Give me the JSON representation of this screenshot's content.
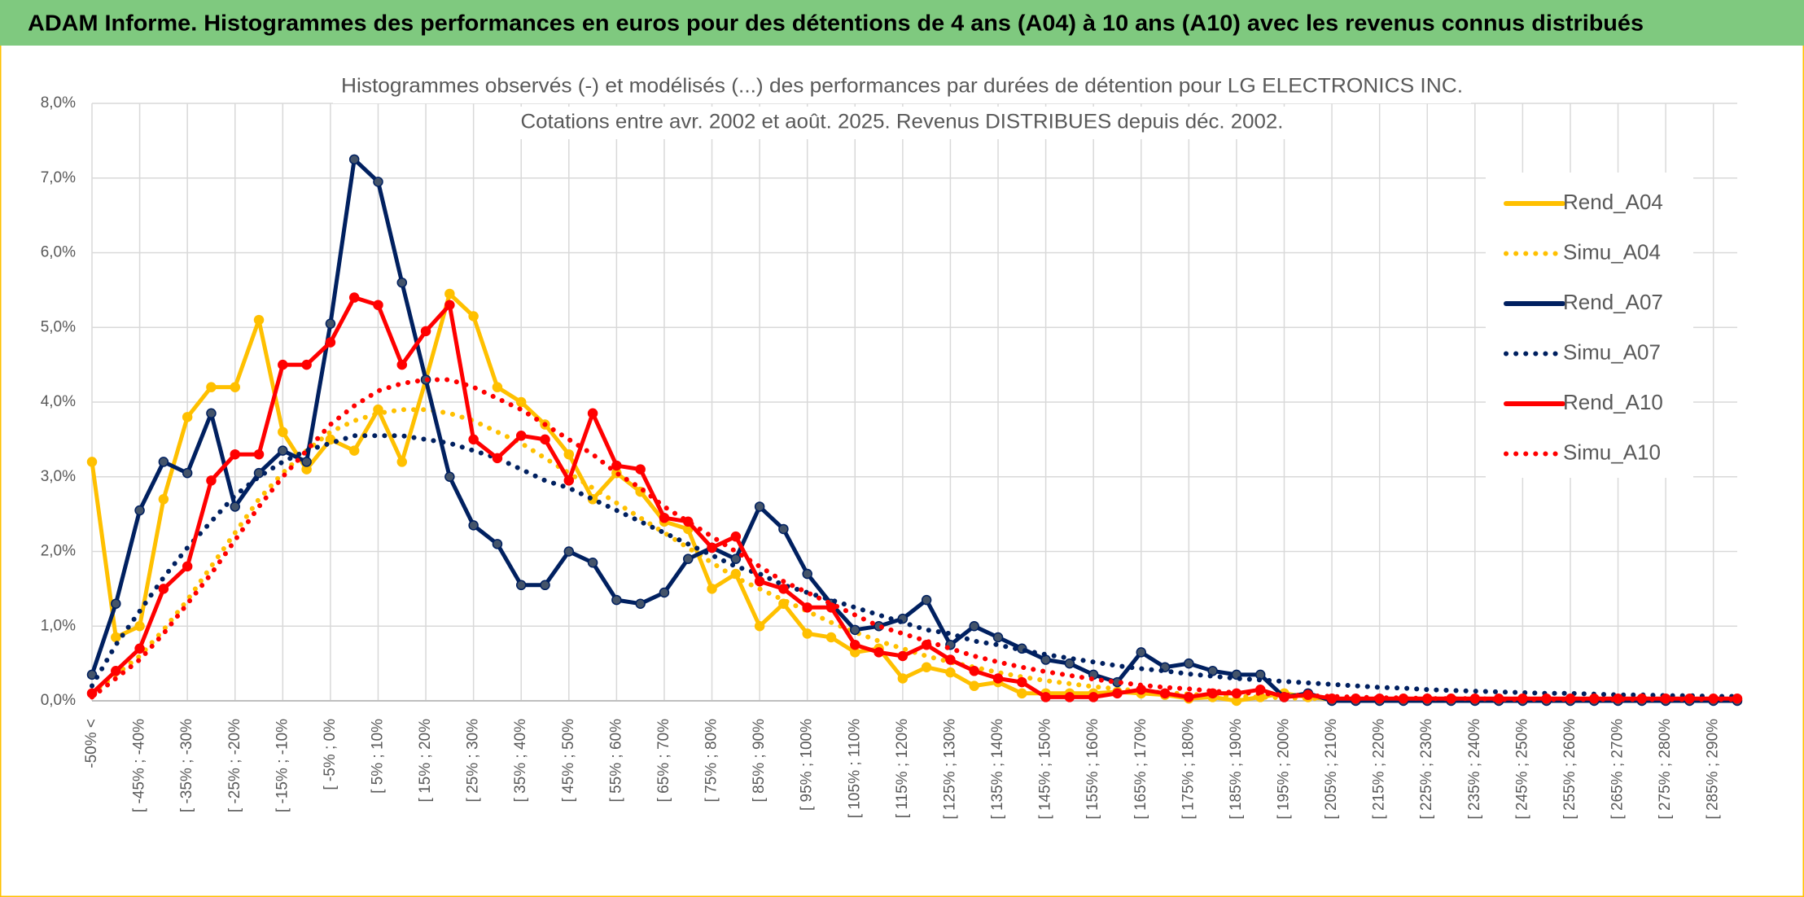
{
  "chart_data": {
    "type": "line",
    "title": "ADAM Informe. Histogrammes des performances en euros pour des détentions de 4 ans (A04) à 10 ans (A10) avec les revenus connus distribués",
    "subtitle": [
      "Histogrammes observés (-) et modélisés (...) des performances par durées de détention pour LG ELECTRONICS INC.",
      "Cotations entre avr. 2002 et août. 2025. Revenus DISTRIBUES depuis déc. 2002."
    ],
    "categories": [
      "-50% <",
      null,
      "[ -45% ; -40%",
      null,
      "[ -35% ; -30%",
      null,
      "[ -25% ; -20%",
      null,
      "[ -15% ; -10%",
      null,
      "[ -5% ; 0%",
      null,
      "[ 5% ; 10%",
      null,
      "[ 15% ; 20%",
      null,
      "[ 25% ; 30%",
      null,
      "[ 35% ; 40%",
      null,
      "[ 45% ; 50%",
      null,
      "[ 55% ; 60%",
      null,
      "[ 65% ; 70%",
      null,
      "[ 75% ; 80%",
      null,
      "[ 85% ; 90%",
      null,
      "[ 95% ; 100%",
      null,
      "[ 105% ; 110%",
      null,
      "[ 115% ; 120%",
      null,
      "[ 125% ; 130%",
      null,
      "[ 135% ; 140%",
      null,
      "[ 145% ; 150%",
      null,
      "[ 155% ; 160%",
      null,
      "[ 165% ; 170%",
      null,
      "[ 175% ; 180%",
      null,
      "[ 185% ; 190%",
      null,
      "[ 195% ; 200%",
      null,
      "[ 205% ; 210%",
      null,
      "[ 215% ; 220%",
      null,
      "[ 225% ; 230%",
      null,
      "[ 235% ; 240%",
      null,
      "[ 245% ; 250%",
      null,
      "[ 255% ; 260%",
      null,
      "[ 265% ; 270%",
      null,
      "[ 275% ; 280%",
      null,
      "[ 285% ; 290%",
      null
    ],
    "ylim": [
      0,
      8
    ],
    "yticks": [
      {
        "value": 0,
        "label": "0,0%"
      },
      {
        "value": 1,
        "label": "1,0%"
      },
      {
        "value": 2,
        "label": "2,0%"
      },
      {
        "value": 3,
        "label": "3,0%"
      },
      {
        "value": 4,
        "label": "4,0%"
      },
      {
        "value": 5,
        "label": "5,0%"
      },
      {
        "value": 6,
        "label": "6,0%"
      },
      {
        "value": 7,
        "label": "7,0%"
      },
      {
        "value": 8,
        "label": "8,0%"
      }
    ],
    "grid": true,
    "legend": "right",
    "series": [
      {
        "name": "Rend_A04",
        "color": "#ffc000",
        "line_style": "solid",
        "markers": true,
        "values": [
          3.2,
          0.85,
          1.0,
          2.7,
          3.8,
          4.2,
          4.2,
          5.1,
          3.6,
          3.1,
          3.5,
          3.35,
          3.9,
          3.2,
          4.3,
          5.45,
          5.15,
          4.2,
          4.0,
          3.7,
          3.3,
          2.7,
          3.05,
          2.8,
          2.4,
          2.3,
          1.5,
          1.7,
          1.0,
          1.3,
          0.9,
          0.85,
          0.65,
          0.7,
          0.3,
          0.45,
          0.38,
          0.2,
          0.25,
          0.1,
          0.1,
          0.1,
          0.1,
          0.12,
          0.1,
          0.08,
          0.03,
          0.05,
          0.0,
          0.05,
          0.1,
          0.05,
          0.02,
          0.02,
          0.02,
          0.02,
          0.02,
          0.02,
          0.02,
          0.02,
          0.02,
          0.02,
          0.02,
          0.02,
          0.02,
          0.02,
          0.02,
          0.02,
          0.02,
          0.02
        ]
      },
      {
        "name": "Simu_A04",
        "color": "#ffc000",
        "line_style": "dotted",
        "markers": false,
        "values": [
          0.1,
          0.35,
          0.6,
          0.95,
          1.35,
          1.8,
          2.25,
          2.7,
          3.05,
          3.35,
          3.6,
          3.75,
          3.85,
          3.9,
          3.9,
          3.85,
          3.75,
          3.6,
          3.45,
          3.25,
          3.05,
          2.85,
          2.65,
          2.45,
          2.25,
          2.05,
          1.85,
          1.65,
          1.5,
          1.35,
          1.2,
          1.05,
          0.92,
          0.8,
          0.7,
          0.6,
          0.52,
          0.45,
          0.38,
          0.32,
          0.27,
          0.23,
          0.19,
          0.16,
          0.13,
          0.11,
          0.09,
          0.07,
          0.06,
          0.05,
          0.04,
          0.03,
          0.03,
          0.02,
          0.02,
          0.02,
          0.01,
          0.01,
          0.01,
          0.01,
          0.01,
          0.01,
          0.01,
          0.01,
          0.01,
          0.01,
          0.01,
          0.01,
          0.01,
          0.01
        ]
      },
      {
        "name": "Rend_A07",
        "color": "#002060",
        "line_style": "solid",
        "markers": true,
        "values": [
          0.35,
          1.3,
          2.55,
          3.2,
          3.05,
          3.85,
          2.6,
          3.05,
          3.35,
          3.2,
          5.05,
          7.25,
          6.95,
          5.6,
          4.3,
          3.0,
          2.35,
          2.1,
          1.55,
          1.55,
          2.0,
          1.85,
          1.35,
          1.3,
          1.45,
          1.9,
          2.05,
          1.9,
          2.6,
          2.3,
          1.7,
          1.3,
          0.95,
          1.0,
          1.1,
          1.35,
          0.75,
          1.0,
          0.85,
          0.7,
          0.55,
          0.5,
          0.35,
          0.25,
          0.65,
          0.45,
          0.5,
          0.4,
          0.35,
          0.35,
          0.05,
          0.1,
          0.0,
          0.0,
          0.0,
          0.0,
          0.0,
          0.0,
          0.0,
          0.0,
          0.0,
          0.0,
          0.0,
          0.0,
          0.0,
          0.0,
          0.0,
          0.0,
          0.0,
          0.0
        ]
      },
      {
        "name": "Simu_A07",
        "color": "#002060",
        "line_style": "dotted",
        "markers": false,
        "values": [
          0.2,
          0.75,
          1.2,
          1.65,
          2.05,
          2.4,
          2.75,
          3.0,
          3.2,
          3.35,
          3.45,
          3.55,
          3.55,
          3.55,
          3.5,
          3.45,
          3.35,
          3.25,
          3.1,
          2.95,
          2.85,
          2.7,
          2.55,
          2.4,
          2.25,
          2.1,
          1.95,
          1.8,
          1.7,
          1.55,
          1.45,
          1.35,
          1.25,
          1.15,
          1.05,
          0.95,
          0.9,
          0.8,
          0.75,
          0.68,
          0.62,
          0.57,
          0.52,
          0.47,
          0.43,
          0.4,
          0.36,
          0.33,
          0.3,
          0.28,
          0.26,
          0.24,
          0.22,
          0.2,
          0.18,
          0.17,
          0.15,
          0.14,
          0.13,
          0.12,
          0.11,
          0.1,
          0.1,
          0.09,
          0.08,
          0.08,
          0.07,
          0.07,
          0.06,
          0.06
        ]
      },
      {
        "name": "Rend_A10",
        "color": "#ff0000",
        "line_style": "solid",
        "markers": true,
        "values": [
          0.1,
          0.4,
          0.7,
          1.5,
          1.8,
          2.95,
          3.3,
          3.3,
          4.5,
          4.5,
          4.8,
          5.4,
          5.3,
          4.5,
          4.95,
          5.3,
          3.5,
          3.25,
          3.55,
          3.5,
          2.95,
          3.85,
          3.15,
          3.1,
          2.45,
          2.4,
          2.05,
          2.2,
          1.6,
          1.5,
          1.25,
          1.25,
          0.75,
          0.65,
          0.6,
          0.75,
          0.55,
          0.4,
          0.3,
          0.25,
          0.05,
          0.05,
          0.05,
          0.1,
          0.15,
          0.1,
          0.05,
          0.1,
          0.1,
          0.15,
          0.05,
          0.08,
          0.03,
          0.03,
          0.03,
          0.03,
          0.03,
          0.03,
          0.03,
          0.03,
          0.03,
          0.03,
          0.03,
          0.03,
          0.03,
          0.03,
          0.03,
          0.03,
          0.03,
          0.03
        ]
      },
      {
        "name": "Simu_A10",
        "color": "#ff0000",
        "line_style": "dotted",
        "markers": false,
        "values": [
          0.05,
          0.3,
          0.55,
          0.9,
          1.3,
          1.7,
          2.15,
          2.6,
          3.0,
          3.35,
          3.7,
          3.95,
          4.15,
          4.25,
          4.3,
          4.3,
          4.2,
          4.05,
          3.9,
          3.7,
          3.5,
          3.3,
          3.05,
          2.85,
          2.6,
          2.4,
          2.2,
          2.0,
          1.8,
          1.6,
          1.45,
          1.3,
          1.15,
          1.0,
          0.9,
          0.8,
          0.7,
          0.6,
          0.52,
          0.45,
          0.39,
          0.34,
          0.29,
          0.25,
          0.21,
          0.18,
          0.16,
          0.13,
          0.11,
          0.1,
          0.08,
          0.07,
          0.06,
          0.05,
          0.04,
          0.04,
          0.03,
          0.03,
          0.03,
          0.02,
          0.02,
          0.02,
          0.02,
          0.02,
          0.02,
          0.02,
          0.02,
          0.02,
          0.02,
          0.02
        ]
      }
    ]
  }
}
